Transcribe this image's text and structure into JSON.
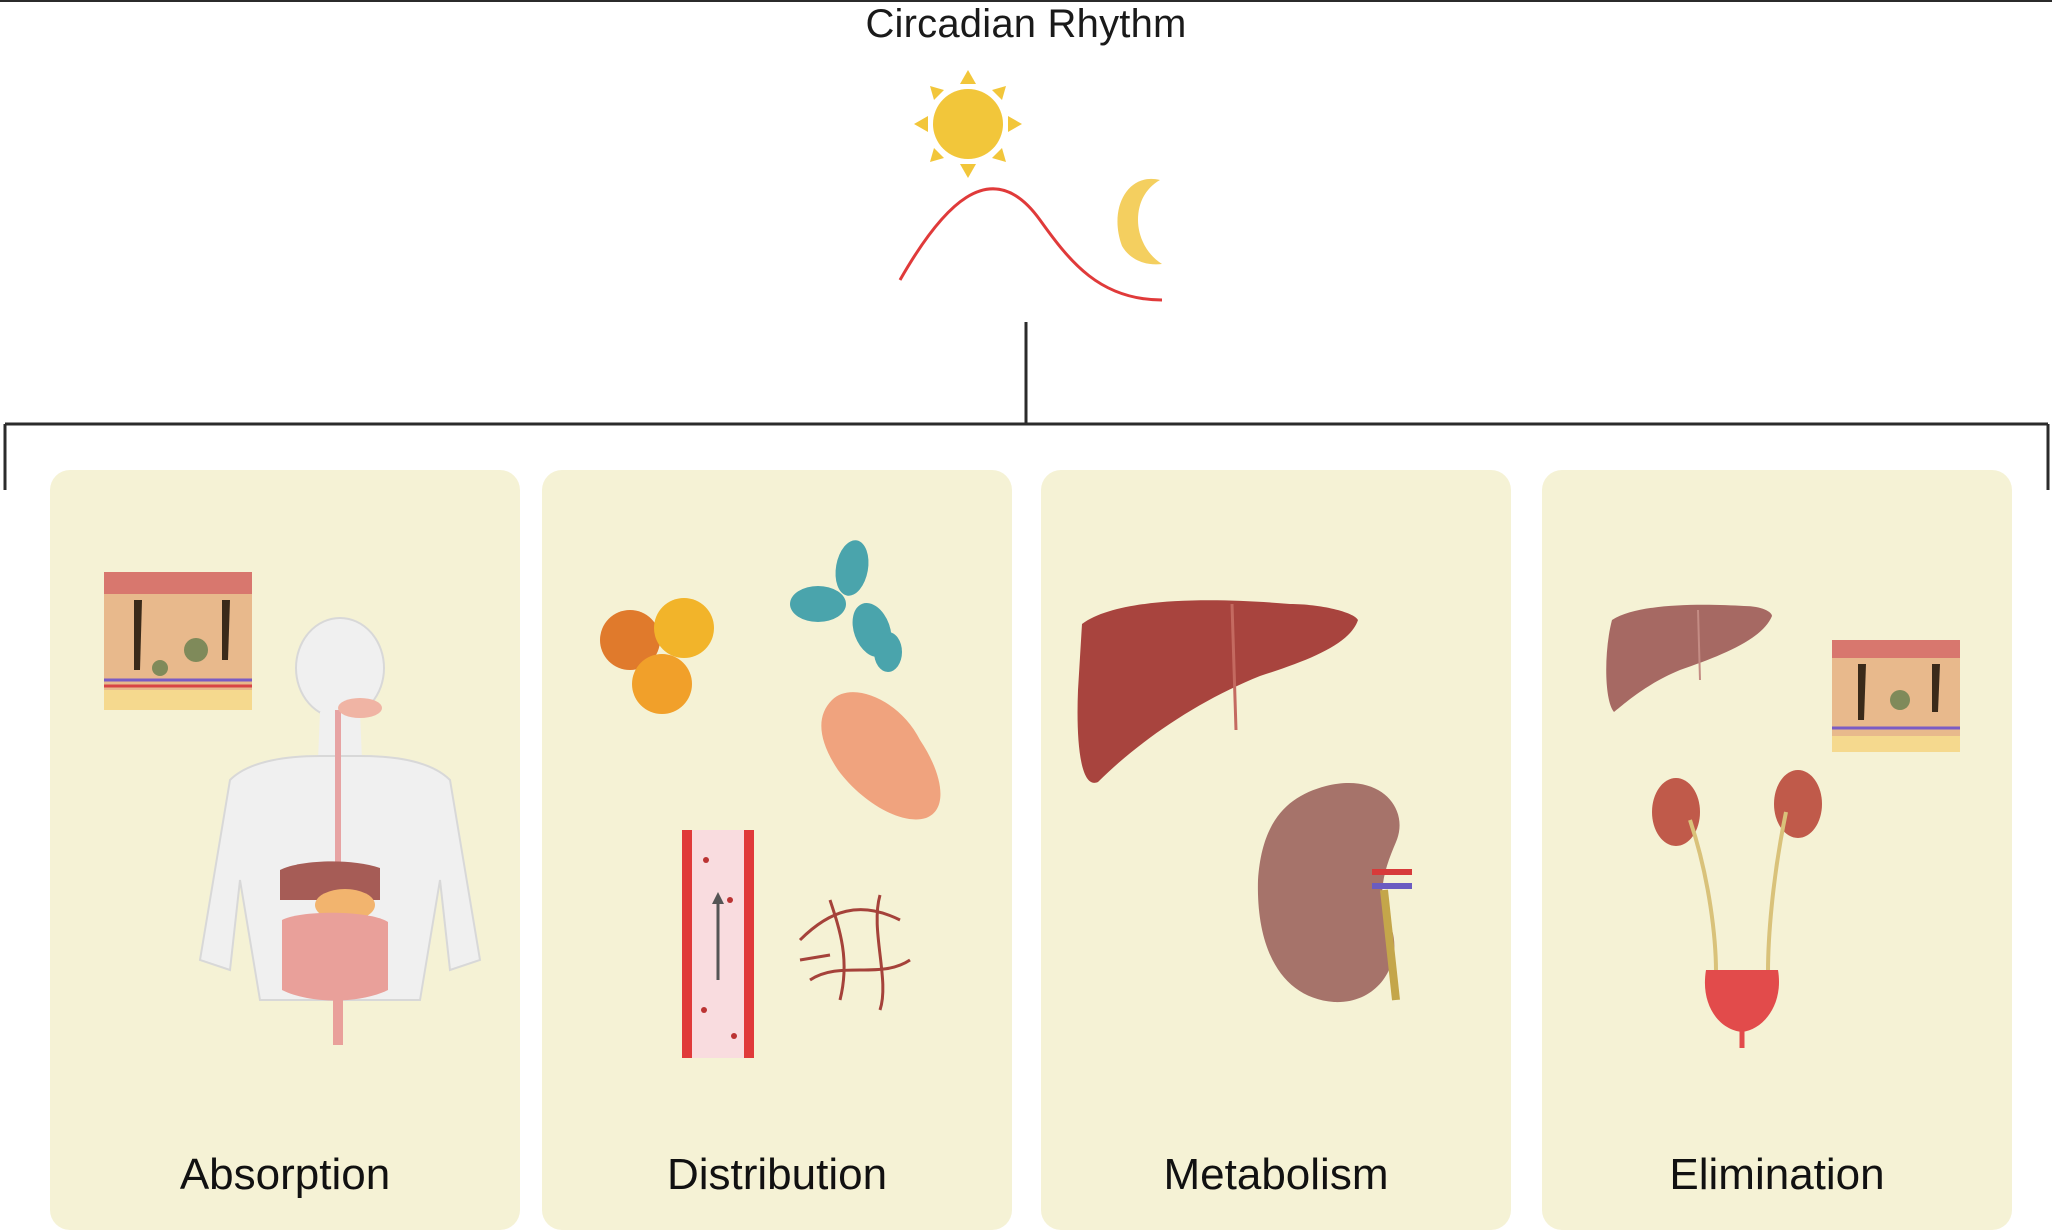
{
  "title": "Circadian Rhythm",
  "stages": [
    {
      "label": "Absorption"
    },
    {
      "label": "Distribution"
    },
    {
      "label": "Metabolism"
    },
    {
      "label": "Elimination"
    }
  ],
  "colors": {
    "card_bg": "#f5f2d5",
    "sun": "#f2c63a",
    "moon": "#f4cf5f",
    "wave": "#e03a3a",
    "line": "#2b2b2b"
  }
}
